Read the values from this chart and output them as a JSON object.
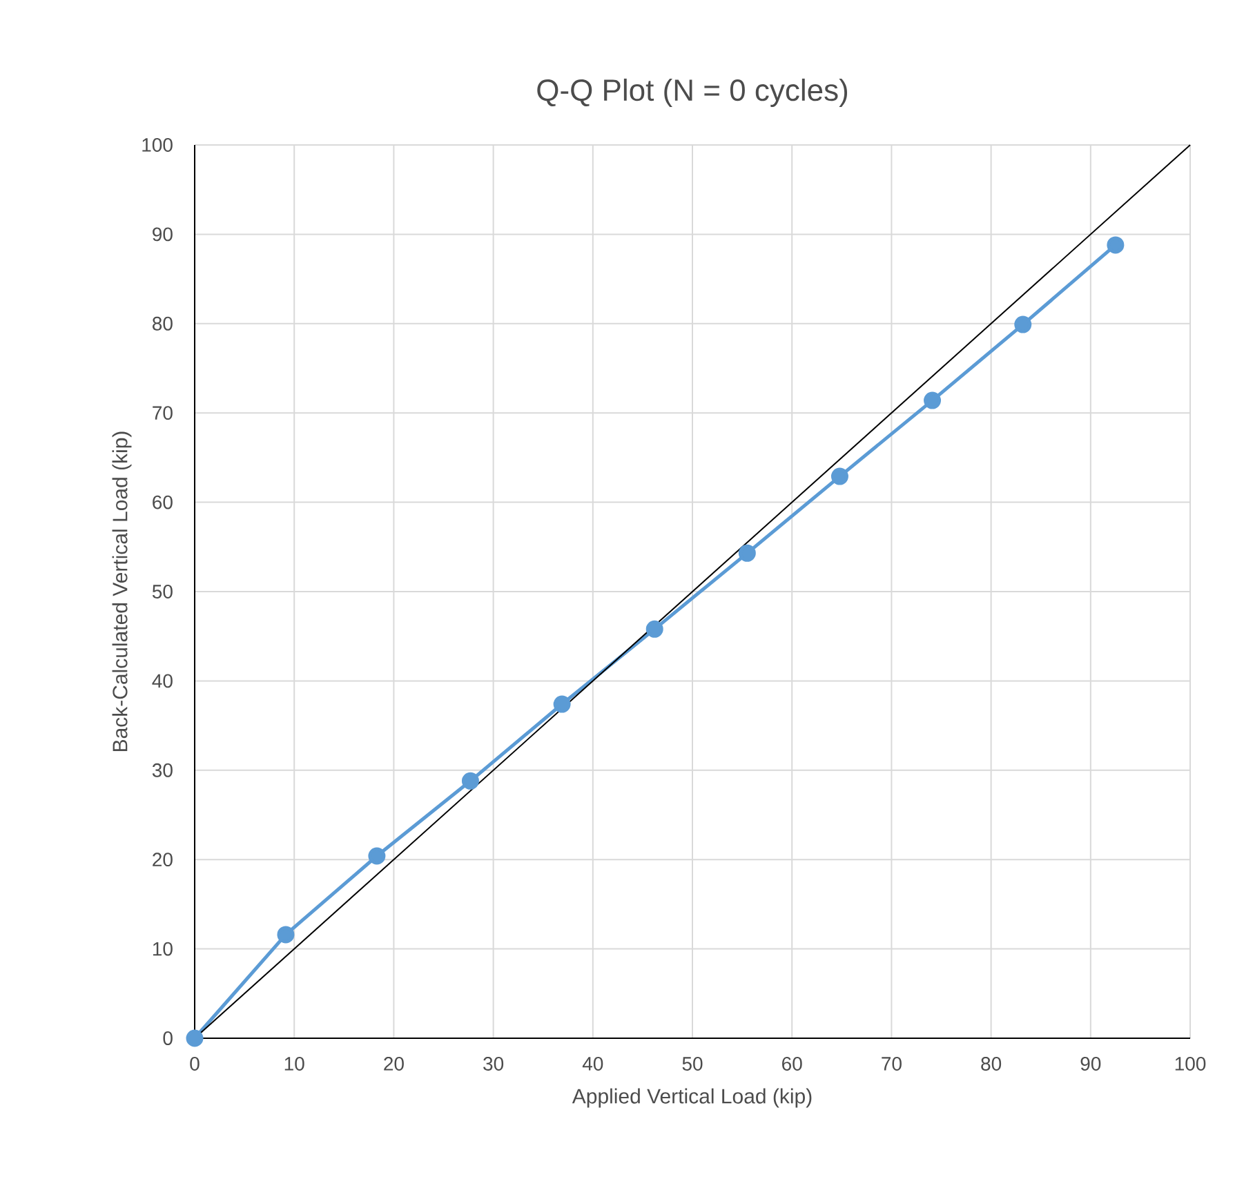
{
  "chart_data": {
    "type": "line",
    "title": "Q-Q Plot (N = 0 cycles)",
    "xlabel": "Applied Vertical Load (kip)",
    "ylabel": "Back-Calculated Vertical Load (kip)",
    "series": [
      {
        "color": "#5b9bd5",
        "marker": "circle",
        "x": [
          0,
          9.15,
          18.3,
          27.7,
          36.9,
          46.2,
          55.5,
          64.8,
          74.1,
          83.2,
          92.5
        ],
        "values": [
          0,
          11.6,
          20.4,
          28.8,
          37.4,
          45.8,
          54.3,
          62.9,
          71.4,
          79.9,
          88.8
        ]
      },
      {
        "color": "#000000",
        "marker": "none",
        "x": [
          0,
          100
        ],
        "values": [
          0,
          100
        ]
      }
    ],
    "xlim": [
      0,
      100
    ],
    "ylim": [
      0,
      100
    ],
    "xticks": [
      0,
      10,
      20,
      30,
      40,
      50,
      60,
      70,
      80,
      90,
      100
    ],
    "yticks": [
      0,
      10,
      20,
      30,
      40,
      50,
      60,
      70,
      80,
      90,
      100
    ],
    "grid": true
  }
}
